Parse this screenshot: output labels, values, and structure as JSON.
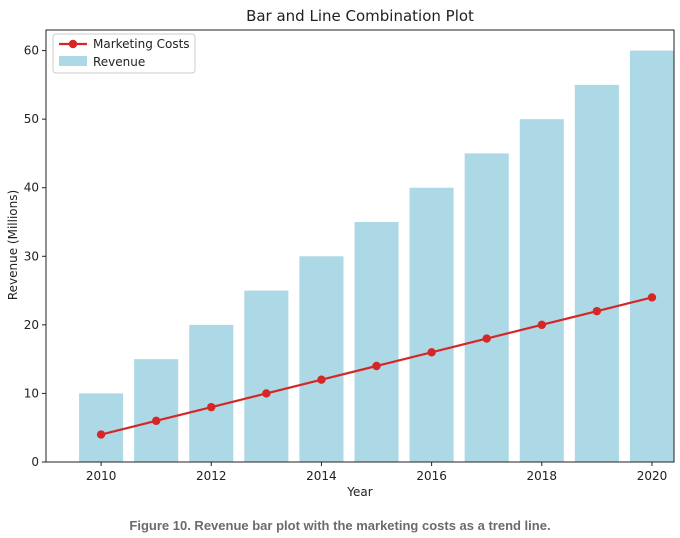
{
  "caption": "Figure 10. Revenue bar plot with the marketing costs as a trend line.",
  "chart_data": {
    "type": "bar",
    "title": "Bar and Line Combination Plot",
    "xlabel": "Year",
    "ylabel": "Revenue (Millions)",
    "x": [
      2010,
      2011,
      2012,
      2013,
      2014,
      2015,
      2016,
      2017,
      2018,
      2019,
      2020
    ],
    "xticks": [
      "2010",
      "2012",
      "2014",
      "2016",
      "2018",
      "2020"
    ],
    "yticks": [
      "0",
      "10",
      "20",
      "30",
      "40",
      "50",
      "60"
    ],
    "ylim": [
      0,
      63
    ],
    "xlim": [
      2009.0,
      2020.4
    ],
    "grid": false,
    "legend_position": "upper-left",
    "series": [
      {
        "name": "Revenue",
        "type": "bar",
        "color": "#add8e6",
        "values": [
          10,
          15,
          20,
          25,
          30,
          35,
          40,
          45,
          50,
          55,
          60
        ]
      },
      {
        "name": "Marketing Costs",
        "type": "line",
        "color": "#d62728",
        "values": [
          4,
          6,
          8,
          10,
          12,
          14,
          16,
          18,
          20,
          22,
          24
        ]
      }
    ]
  }
}
